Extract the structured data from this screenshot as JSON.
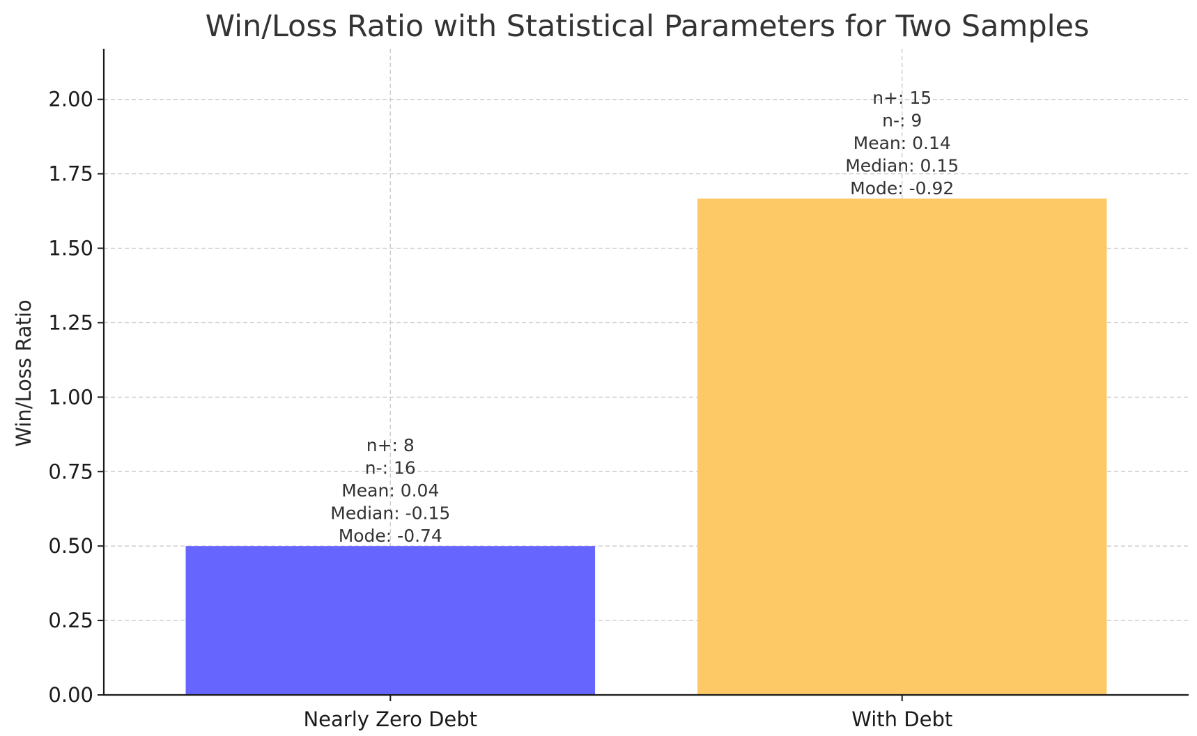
{
  "chart_data": {
    "type": "bar",
    "title": "Win/Loss Ratio with Statistical Parameters for Two Samples",
    "xlabel": "",
    "ylabel": "Win/Loss Ratio",
    "categories": [
      "Nearly Zero Debt",
      "With Debt"
    ],
    "values": [
      0.5,
      1.6667
    ],
    "colors": [
      "#6666ff",
      "#fdc966"
    ],
    "ylim": [
      0,
      2.17
    ],
    "yticks": [
      "0.00",
      "0.25",
      "0.50",
      "0.75",
      "1.00",
      "1.25",
      "1.50",
      "1.75",
      "2.00"
    ],
    "grid": true,
    "annotations": [
      [
        "n+: 8",
        "n-: 16",
        "Mean: 0.04",
        "Median: -0.15",
        "Mode: -0.74"
      ],
      [
        "n+: 15",
        "n-: 9",
        "Mean: 0.14",
        "Median: 0.15",
        "Mode: -0.92"
      ]
    ]
  }
}
